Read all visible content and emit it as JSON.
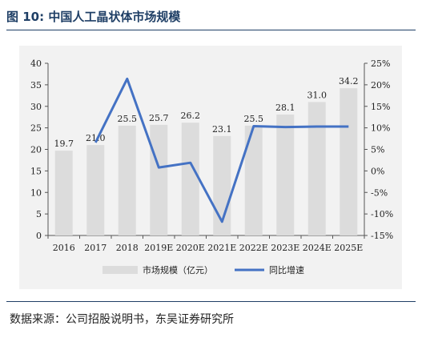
{
  "figure": {
    "title": "图 10:  中国人工晶状体市场规模",
    "source": "数据来源：公司招股说明书，东吴证券研究所"
  },
  "chart_data": {
    "type": "bar",
    "categories": [
      "2016",
      "2017",
      "2018",
      "2019E",
      "2020E",
      "2021E",
      "2022E",
      "2023E",
      "2024E",
      "2025E"
    ],
    "series": [
      {
        "name": "市场规模（亿元）",
        "type": "bar",
        "axis": "left",
        "values": [
          19.7,
          21.0,
          25.5,
          25.7,
          26.2,
          23.1,
          25.5,
          28.1,
          31.0,
          34.2
        ],
        "labels": [
          "19.7",
          "21.0",
          "25.5",
          "25.7",
          "26.2",
          "23.1",
          "25.5",
          "28.1",
          "31.0",
          "34.2"
        ]
      },
      {
        "name": "同比增速",
        "type": "line",
        "axis": "right",
        "values": [
          null,
          6.6,
          21.4,
          0.8,
          1.9,
          -11.8,
          10.4,
          10.2,
          10.3,
          10.3
        ]
      }
    ],
    "y_left": {
      "ticks": [
        0,
        5,
        10,
        15,
        20,
        25,
        30,
        35,
        40
      ],
      "labels": [
        "0",
        "5",
        "10",
        "15",
        "20",
        "25",
        "30",
        "35",
        "40"
      ],
      "ylim": [
        0,
        40
      ]
    },
    "y_right": {
      "ticks": [
        -15,
        -10,
        -5,
        0,
        5,
        10,
        15,
        20,
        25
      ],
      "labels": [
        "-15%",
        "-10%",
        "-5%",
        "0%",
        "5%",
        "10%",
        "15%",
        "20%",
        "25%"
      ],
      "ylim": [
        -15,
        25
      ]
    },
    "legend_position": "bottom",
    "colors": {
      "bar": "#dcdcdc",
      "line": "#4472c4",
      "panel": "#f2f2f2",
      "title": "#1f3f66"
    }
  }
}
